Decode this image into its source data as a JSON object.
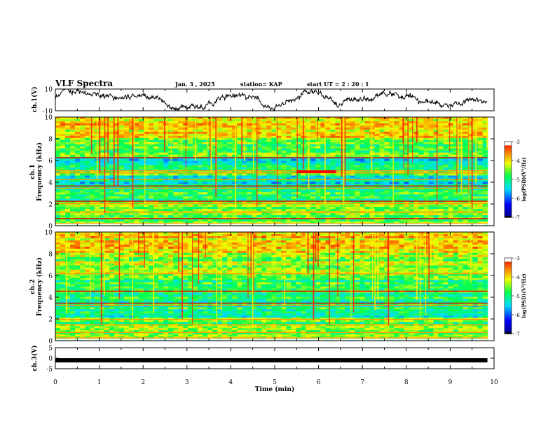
{
  "header": {
    "title": "VLF Spectra",
    "date": "Jan. 3 , 2025",
    "station": "station= KAP",
    "start": "start  UT =   2 : 20 : 1"
  },
  "chart_data": {
    "type": "heatmap",
    "x": {
      "label": "Time  (min)",
      "min": 0,
      "max": 10,
      "ticks": [
        "0",
        "1",
        "2",
        "3",
        "4",
        "5",
        "6",
        "7",
        "8",
        "9",
        "10"
      ]
    },
    "panels": [
      {
        "id": "ch1-waveform",
        "type": "line",
        "ylabel": "ch.1(V)",
        "ylim": [
          -10,
          10
        ],
        "ytick_labels": [
          "10",
          "-10"
        ],
        "data_until_min": 9.85
      },
      {
        "id": "ch1-spectrogram",
        "type": "heatmap",
        "ylabel": "ch.1\nFrequency (kHz)",
        "ylabel_line1": "ch.1",
        "ylabel_line2": "Frequency  (kHz)",
        "ylim": [
          0,
          10
        ],
        "ytick_labels": [
          "0",
          "2",
          "4",
          "6",
          "8",
          "10"
        ],
        "data_until_min": 9.85
      },
      {
        "id": "ch2-spectrogram",
        "type": "heatmap",
        "ylabel": "ch.2\nFrequency (kHz)",
        "ylabel_line1": "ch.2",
        "ylabel_line2": "Frequency  (kHz)",
        "ylim": [
          0,
          10
        ],
        "ytick_labels": [
          "0",
          "2",
          "4",
          "6",
          "8",
          "10"
        ],
        "data_until_min": 9.85
      },
      {
        "id": "ch3-waveform",
        "type": "line",
        "ylabel": "ch.3(V)",
        "ylim": [
          -5,
          5
        ],
        "ytick_labels": [
          "5",
          "0",
          "-5"
        ],
        "constant_value": -1,
        "data_until_min": 9.85
      }
    ],
    "colorbar": {
      "label": "log(PSD)(V²/Hz)",
      "range": [
        -7,
        -3
      ],
      "tick_labels": [
        "-3",
        "-4",
        "-5",
        "-6",
        "-7"
      ]
    },
    "colors": {
      "low": "#000080",
      "mid": "#00ff00",
      "high": "#ff0000",
      "top": "#ffffff"
    }
  }
}
